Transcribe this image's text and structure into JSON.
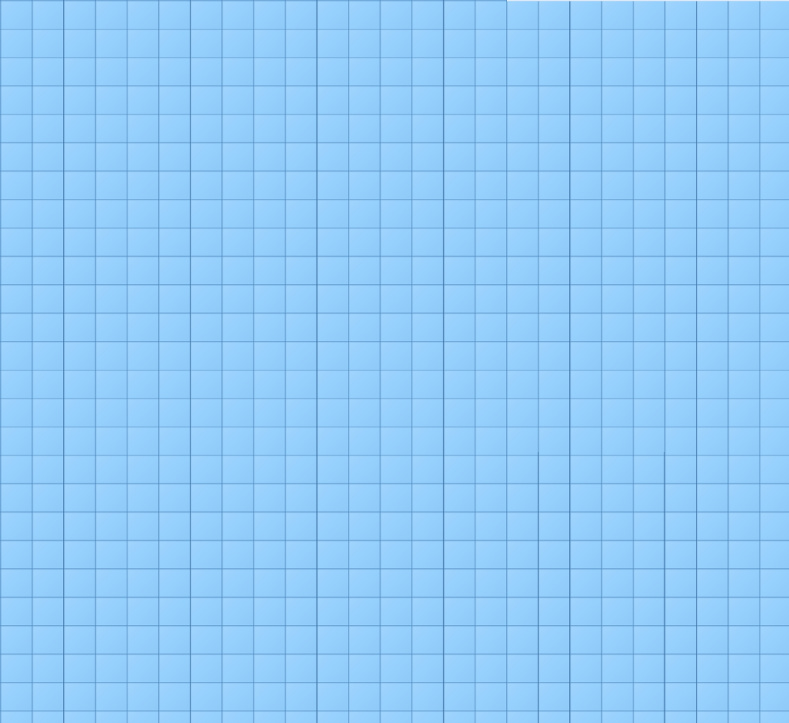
{
  "desktop": {
    "background": {
      "pattern": "tiled-squares",
      "base_color": "#96d0fd",
      "grout_color": "#4682b9"
    }
  }
}
